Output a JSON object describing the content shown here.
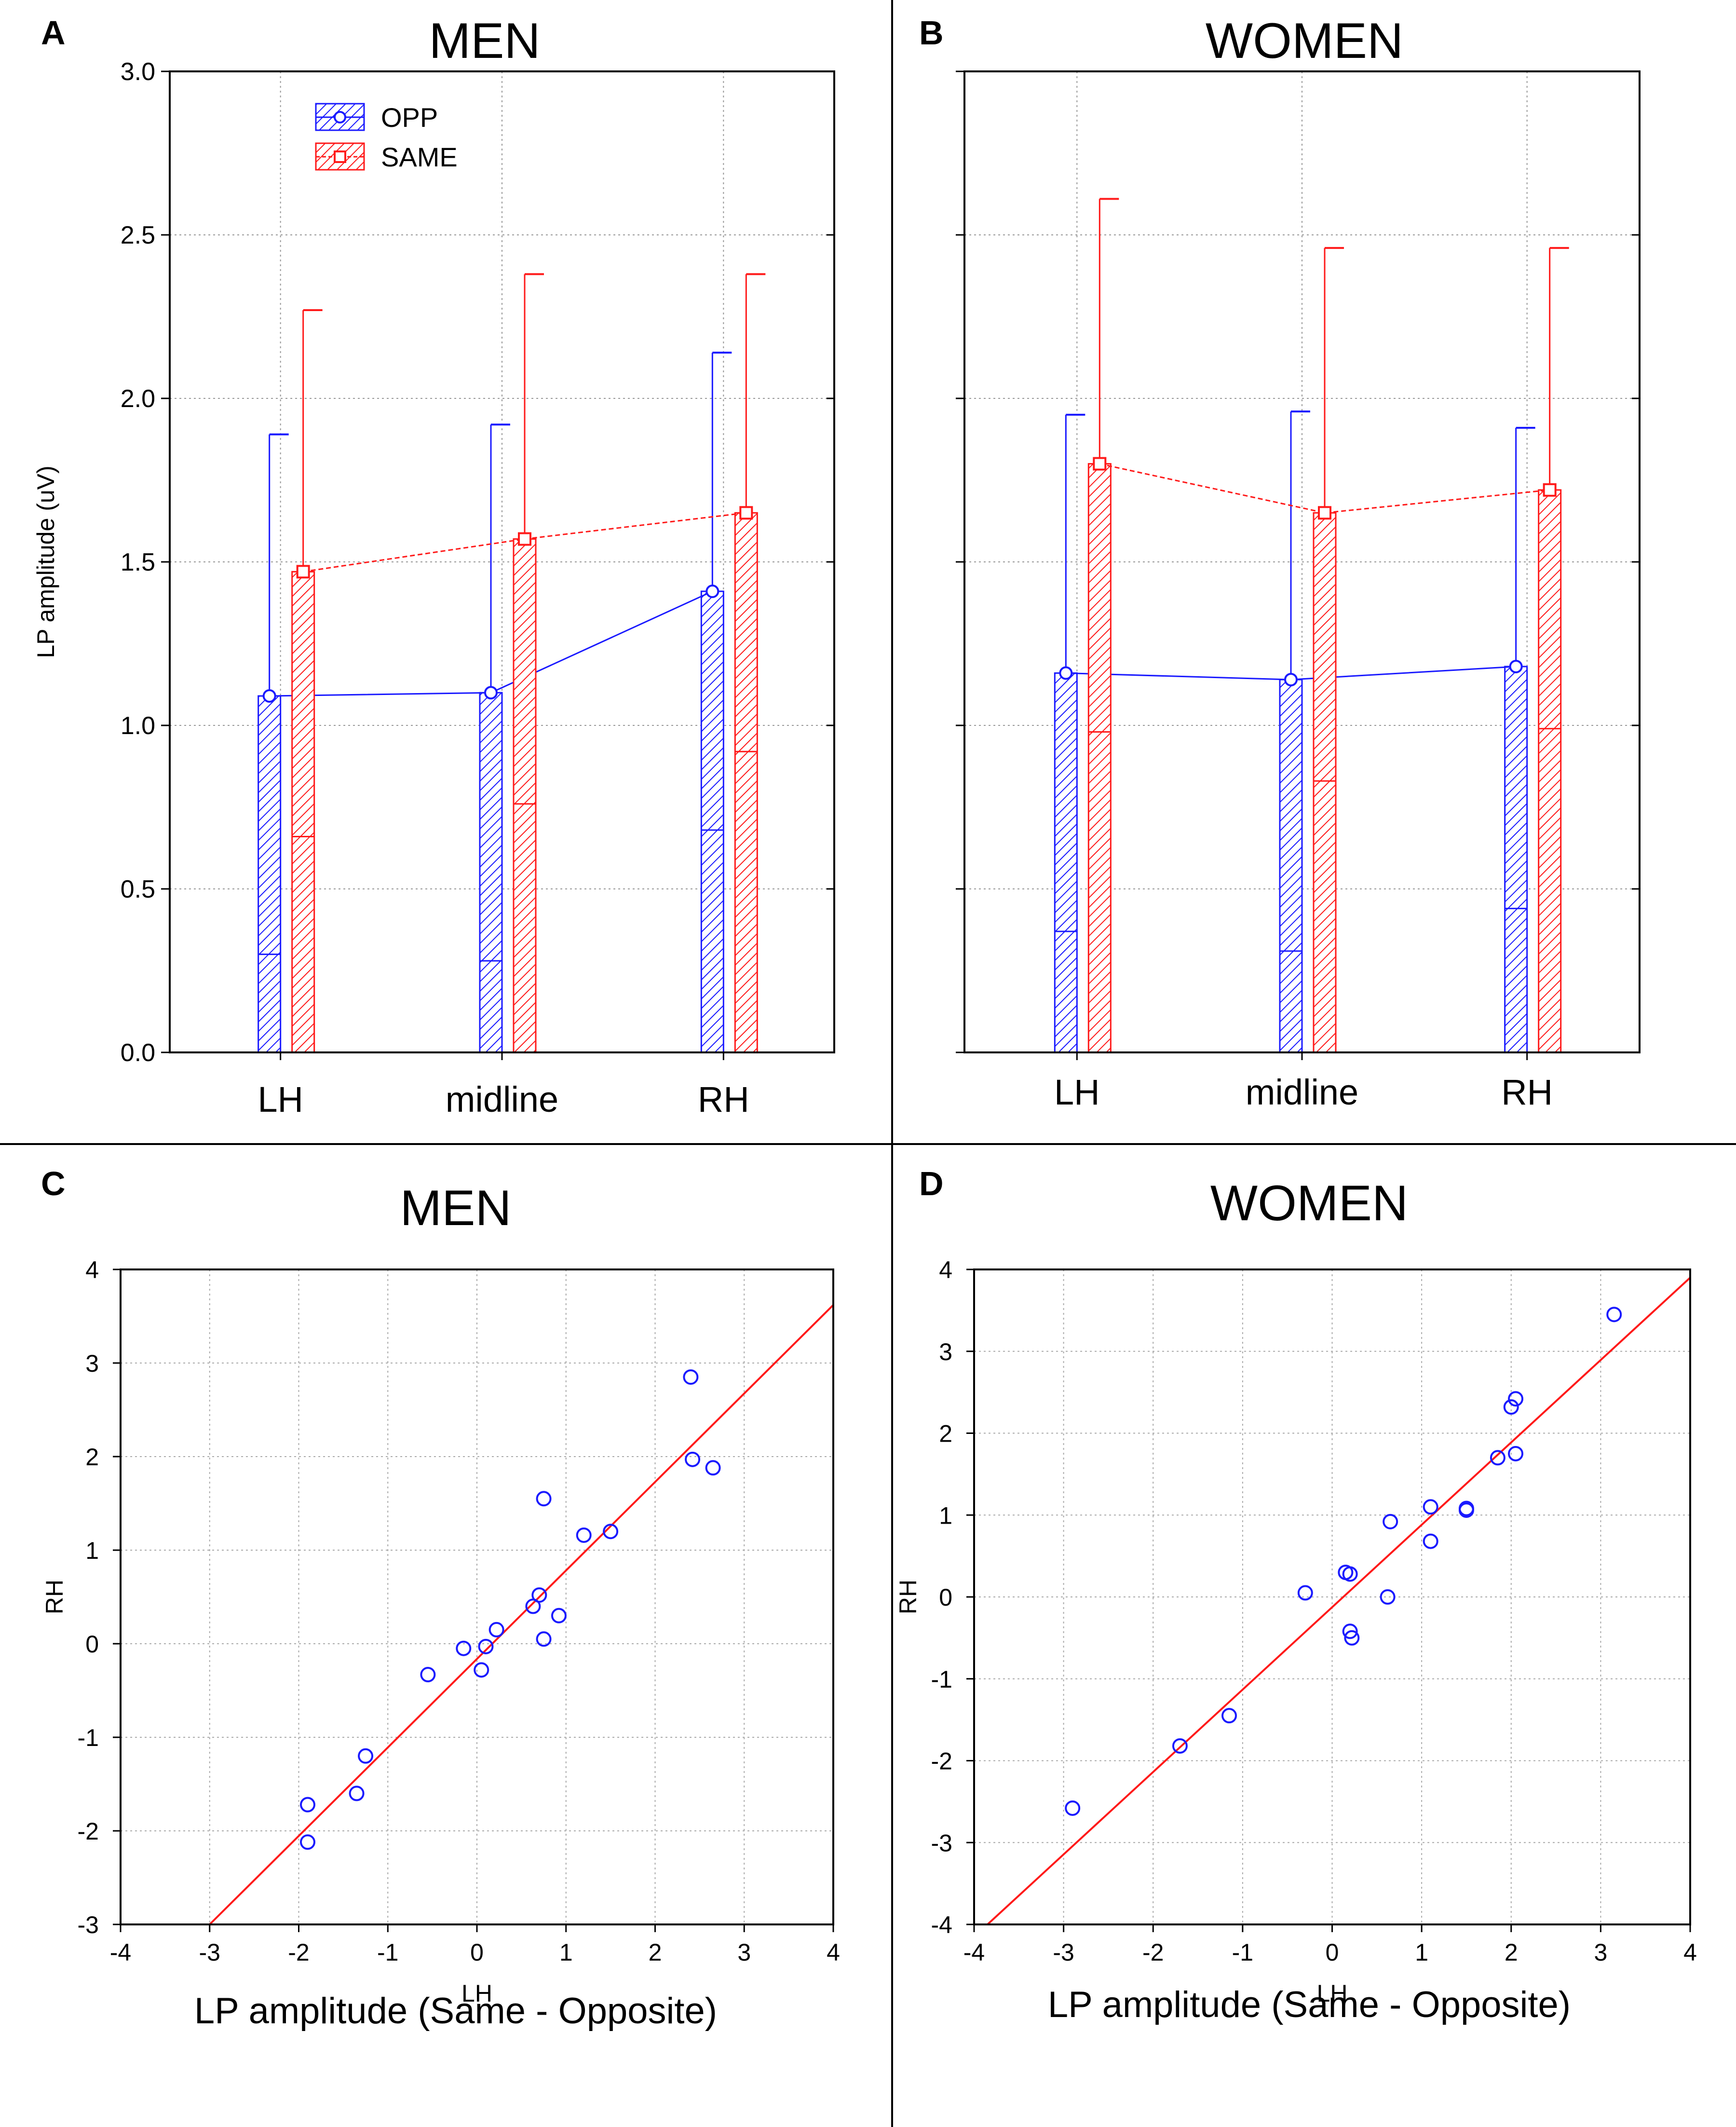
{
  "chart_data": [
    {
      "panel": "A",
      "type": "bar",
      "title": "MEN",
      "ylabel": "LP amplitude (uV)",
      "xlabel": "",
      "categories": [
        "LH",
        "midline",
        "RH"
      ],
      "ylim": [
        0,
        3
      ],
      "yticks": [
        "0.0",
        "0.5",
        "1.0",
        "1.5",
        "2.0",
        "2.5",
        "3.0"
      ],
      "grid": true,
      "legend_position": "top-left",
      "series": [
        {
          "name": "OPP",
          "color": "#1a1aff",
          "values": [
            1.09,
            1.1,
            1.41
          ],
          "upper": [
            1.89,
            1.92,
            2.14
          ],
          "lower": [
            0.3,
            0.28,
            0.68
          ]
        },
        {
          "name": "SAME",
          "color": "#ff1a1a",
          "values": [
            1.47,
            1.57,
            1.65
          ],
          "upper": [
            2.27,
            2.38,
            2.38
          ],
          "lower": [
            0.66,
            0.76,
            0.92
          ]
        }
      ]
    },
    {
      "panel": "B",
      "type": "bar",
      "title": "WOMEN",
      "ylabel": "",
      "xlabel": "",
      "categories": [
        "LH",
        "midline",
        "RH"
      ],
      "ylim": [
        0,
        3
      ],
      "yticks": [],
      "grid": true,
      "series": [
        {
          "name": "OPP",
          "color": "#1a1aff",
          "values": [
            1.16,
            1.14,
            1.18
          ],
          "upper": [
            1.95,
            1.96,
            1.91
          ],
          "lower": [
            0.37,
            0.31,
            0.44
          ]
        },
        {
          "name": "SAME",
          "color": "#ff1a1a",
          "values": [
            1.8,
            1.65,
            1.72
          ],
          "upper": [
            2.61,
            2.46,
            2.46
          ],
          "lower": [
            0.98,
            0.83,
            0.99
          ]
        }
      ]
    },
    {
      "panel": "C",
      "type": "scatter",
      "title": "MEN",
      "xlabel": "LH",
      "ylabel": "RH",
      "caption": "LP  amplitude (Same - Opposite)",
      "xlim": [
        -4,
        4
      ],
      "ylim": [
        -3,
        4
      ],
      "xticks": [
        "-4",
        "-3",
        "-2",
        "-1",
        "0",
        "1",
        "2",
        "3",
        "4"
      ],
      "yticks": [
        "-3",
        "-2",
        "-1",
        "0",
        "1",
        "2",
        "3",
        "4"
      ],
      "grid": true,
      "points": [
        {
          "x": -1.9,
          "y": -1.72
        },
        {
          "x": -1.9,
          "y": -2.12
        },
        {
          "x": -1.35,
          "y": -1.6
        },
        {
          "x": -1.25,
          "y": -1.2
        },
        {
          "x": -0.55,
          "y": -0.33
        },
        {
          "x": -0.15,
          "y": -0.05
        },
        {
          "x": 0.05,
          "y": -0.28
        },
        {
          "x": 0.1,
          "y": -0.03
        },
        {
          "x": 0.22,
          "y": 0.15
        },
        {
          "x": 0.63,
          "y": 0.4
        },
        {
          "x": 0.7,
          "y": 0.52
        },
        {
          "x": 0.75,
          "y": 1.55
        },
        {
          "x": 0.75,
          "y": 0.05
        },
        {
          "x": 0.92,
          "y": 0.3
        },
        {
          "x": 1.2,
          "y": 1.16
        },
        {
          "x": 1.5,
          "y": 1.2
        },
        {
          "x": 2.4,
          "y": 2.85
        },
        {
          "x": 2.42,
          "y": 1.97
        },
        {
          "x": 2.65,
          "y": 1.88
        }
      ],
      "fit_line": [
        [
          -3,
          -3
        ],
        [
          4,
          3.62
        ]
      ]
    },
    {
      "panel": "D",
      "type": "scatter",
      "title": "WOMEN",
      "xlabel": "LH",
      "ylabel": "RH",
      "caption": "LP  amplitude (Same - Opposite)",
      "xlim": [
        -4,
        4
      ],
      "ylim": [
        -4,
        4
      ],
      "xticks": [
        "-4",
        "-3",
        "-2",
        "-1",
        "0",
        "1",
        "2",
        "3",
        "4"
      ],
      "yticks": [
        "-4",
        "-3",
        "-2",
        "-1",
        "0",
        "1",
        "2",
        "3",
        "4"
      ],
      "grid": true,
      "points": [
        {
          "x": -2.9,
          "y": -2.58
        },
        {
          "x": -1.7,
          "y": -1.82
        },
        {
          "x": -1.15,
          "y": -1.45
        },
        {
          "x": -0.3,
          "y": 0.05
        },
        {
          "x": 0.15,
          "y": 0.3
        },
        {
          "x": 0.2,
          "y": 0.28
        },
        {
          "x": 0.2,
          "y": -0.42
        },
        {
          "x": 0.22,
          "y": -0.5
        },
        {
          "x": 0.65,
          "y": 0.92
        },
        {
          "x": 0.62,
          "y": 0.0
        },
        {
          "x": 1.1,
          "y": 1.1
        },
        {
          "x": 1.1,
          "y": 0.68
        },
        {
          "x": 1.5,
          "y": 1.06
        },
        {
          "x": 1.5,
          "y": 1.08
        },
        {
          "x": 1.85,
          "y": 1.7
        },
        {
          "x": 2.0,
          "y": 2.32
        },
        {
          "x": 2.05,
          "y": 2.42
        },
        {
          "x": 2.05,
          "y": 1.75
        },
        {
          "x": 3.15,
          "y": 3.45
        }
      ],
      "fit_line": [
        [
          -3.85,
          -4
        ],
        [
          4,
          3.9
        ]
      ]
    }
  ]
}
